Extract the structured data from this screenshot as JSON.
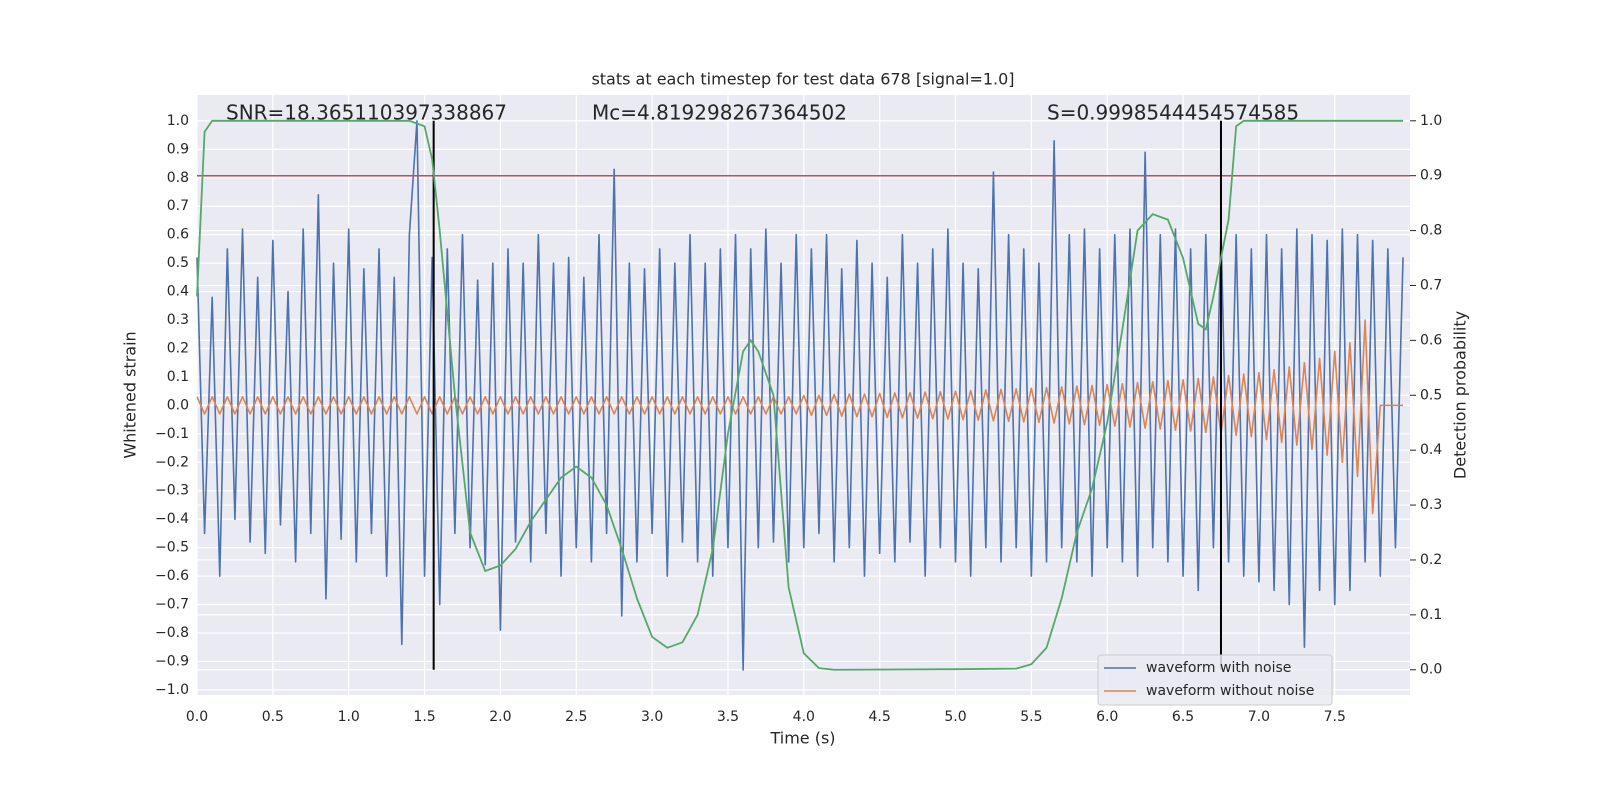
{
  "chart_data": {
    "type": "line",
    "title": "stats at each timestep for test data 678 [signal=1.0]",
    "xlabel": "Time (s)",
    "ylabel": "Whitened strain",
    "y2label": "Detection probability",
    "annotations": [
      "SNR=18.365110397338867",
      "Mc=4.819298267364502",
      "S=0.9998544454574585"
    ],
    "xlim": [
      0,
      7.996
    ],
    "ylim": [
      -1.018,
      1.091
    ],
    "y2lim": [
      -0.046,
      1.047
    ],
    "xticks": [
      {
        "value": 0,
        "label": "0.0"
      },
      0.5,
      {
        "value": 1,
        "label": "1.0"
      },
      1.5,
      {
        "value": 2,
        "label": "2.0"
      },
      2.5,
      {
        "value": 3,
        "label": "3.0"
      },
      3.5,
      {
        "value": 4,
        "label": "4.0"
      },
      4.5,
      {
        "value": 5,
        "label": "5.0"
      },
      5.5,
      {
        "value": 6,
        "label": "6.0"
      },
      6.5,
      {
        "value": 7,
        "label": "7.0"
      },
      7.5
    ],
    "yticks": [
      {
        "value": -1,
        "label": "−1.0"
      },
      {
        "value": -0.9,
        "label": "−0.9"
      },
      {
        "value": -0.8,
        "label": "−0.8"
      },
      {
        "value": -0.7,
        "label": "−0.7"
      },
      {
        "value": -0.6,
        "label": "−0.6"
      },
      {
        "value": -0.5,
        "label": "−0.5"
      },
      {
        "value": -0.4,
        "label": "−0.4"
      },
      {
        "value": -0.3,
        "label": "−0.3"
      },
      {
        "value": -0.2,
        "label": "−0.2"
      },
      {
        "value": -0.1,
        "label": "−0.1"
      },
      {
        "value": 0,
        "label": "0.0"
      },
      0.1,
      0.2,
      0.3,
      0.4,
      0.5,
      0.6,
      0.7,
      0.8,
      0.9,
      {
        "value": 1,
        "label": "1.0"
      }
    ],
    "y2ticks": [
      {
        "value": 0,
        "label": "0.0"
      },
      0.1,
      0.2,
      0.3,
      0.4,
      0.5,
      0.6,
      0.7,
      0.8,
      0.9,
      {
        "value": 1,
        "label": "1.0"
      }
    ],
    "grid": true,
    "legend": "lower right",
    "x": [
      0,
      0.05,
      0.1,
      0.15,
      0.2,
      0.25,
      0.3,
      0.35,
      0.4,
      0.45,
      0.5,
      0.55,
      0.6,
      0.65,
      0.7,
      0.75,
      0.8,
      0.85,
      0.9,
      0.95,
      1,
      1.05,
      1.1,
      1.15,
      1.2,
      1.25,
      1.3,
      1.35,
      1.4,
      1.45,
      1.5,
      1.55,
      1.6,
      1.65,
      1.7,
      1.75,
      1.8,
      1.85,
      1.9,
      1.95,
      2,
      2.05,
      2.1,
      2.15,
      2.2,
      2.25,
      2.3,
      2.35,
      2.4,
      2.45,
      2.5,
      2.55,
      2.6,
      2.65,
      2.7,
      2.75,
      2.8,
      2.85,
      2.9,
      2.95,
      3,
      3.05,
      3.1,
      3.15,
      3.2,
      3.25,
      3.3,
      3.35,
      3.4,
      3.45,
      3.5,
      3.55,
      3.6,
      3.65,
      3.7,
      3.75,
      3.8,
      3.85,
      3.9,
      3.95,
      4,
      4.05,
      4.1,
      4.15,
      4.2,
      4.25,
      4.3,
      4.35,
      4.4,
      4.45,
      4.5,
      4.55,
      4.6,
      4.65,
      4.7,
      4.75,
      4.8,
      4.85,
      4.9,
      4.95,
      5,
      5.05,
      5.1,
      5.15,
      5.2,
      5.25,
      5.3,
      5.35,
      5.4,
      5.45,
      5.5,
      5.55,
      5.6,
      5.65,
      5.7,
      5.75,
      5.8,
      5.85,
      5.9,
      5.95,
      6,
      6.05,
      6.1,
      6.15,
      6.2,
      6.25,
      6.3,
      6.35,
      6.4,
      6.45,
      6.5,
      6.55,
      6.6,
      6.65,
      6.7,
      6.75,
      6.8,
      6.85,
      6.9,
      6.95,
      7,
      7.05,
      7.1,
      7.15,
      7.2,
      7.25,
      7.3,
      7.35,
      7.4,
      7.45,
      7.5,
      7.55,
      7.6,
      7.65,
      7.7,
      7.75,
      7.8,
      7.85,
      7.9,
      7.95
    ],
    "series": [
      {
        "name": "waveform with noise",
        "color": "#4c72b0",
        "values": [
          0.52,
          -0.45,
          0.38,
          -0.6,
          0.55,
          -0.4,
          0.62,
          -0.48,
          0.45,
          -0.52,
          0.58,
          -0.42,
          0.4,
          -0.55,
          0.62,
          -0.45,
          0.74,
          -0.68,
          0.5,
          -0.47,
          0.62,
          -0.55,
          0.48,
          -0.45,
          0.55,
          -0.6,
          0.45,
          -0.84,
          0.6,
          1.0,
          -0.6,
          0.52,
          -0.7,
          0.55,
          -0.45,
          0.6,
          -0.5,
          0.44,
          -0.56,
          0.5,
          -0.79,
          0.55,
          -0.48,
          0.5,
          -0.55,
          0.6,
          -0.45,
          0.5,
          -0.6,
          0.52,
          -0.5,
          0.45,
          -0.55,
          0.6,
          -0.45,
          0.83,
          -0.74,
          0.5,
          -0.55,
          0.48,
          -0.45,
          0.55,
          -0.6,
          0.5,
          -0.48,
          0.6,
          -0.55,
          0.5,
          -0.6,
          0.55,
          -0.5,
          0.6,
          -0.93,
          0.55,
          -0.5,
          0.62,
          -0.48,
          0.5,
          -0.55,
          0.6,
          -0.5,
          0.55,
          -0.45,
          0.6,
          -0.55,
          0.48,
          -0.5,
          0.58,
          -0.6,
          0.5,
          -0.52,
          0.45,
          -0.55,
          0.6,
          -0.48,
          0.5,
          -0.6,
          0.55,
          -0.5,
          0.62,
          -0.55,
          0.5,
          -0.6,
          0.48,
          -0.5,
          0.82,
          -0.55,
          0.6,
          -0.5,
          0.55,
          -0.6,
          0.5,
          -0.55,
          0.93,
          -0.5,
          0.6,
          -0.55,
          0.62,
          -0.6,
          0.55,
          -0.5,
          0.6,
          -0.55,
          0.62,
          -0.6,
          0.89,
          -0.5,
          0.6,
          -0.55,
          0.62,
          -0.6,
          0.55,
          -0.65,
          0.6,
          -0.5,
          0.62,
          -0.55,
          0.6,
          -0.6,
          0.55,
          -0.62,
          0.6,
          -0.65,
          0.55,
          -0.7,
          0.62,
          -0.85,
          0.6,
          -0.65,
          0.58,
          -0.7,
          0.62,
          -0.65,
          0.6,
          -0.55,
          0.58,
          -0.6,
          0.55,
          -0.5,
          0.52
        ]
      },
      {
        "name": "waveform without noise",
        "color": "#dd8452",
        "values": [
          0.03,
          -0.03,
          0.03,
          -0.03,
          0.03,
          -0.03,
          0.03,
          -0.03,
          0.03,
          -0.03,
          0.03,
          -0.03,
          0.03,
          -0.03,
          0.03,
          -0.03,
          0.03,
          -0.03,
          0.03,
          -0.03,
          0.03,
          -0.03,
          0.03,
          -0.03,
          0.03,
          -0.03,
          0.03,
          -0.03,
          0.03,
          -0.03,
          0.03,
          -0.03,
          0.03,
          -0.03,
          0.03,
          -0.03,
          0.03,
          -0.03,
          0.03,
          -0.03,
          0.03,
          -0.03,
          0.03,
          -0.03,
          0.03,
          -0.03,
          0.03,
          -0.03,
          0.03,
          -0.03,
          0.03,
          -0.03,
          0.03,
          -0.03,
          0.03,
          -0.03,
          0.03,
          -0.03,
          0.03,
          -0.03,
          0.03,
          -0.03,
          0.03,
          -0.03,
          0.03,
          -0.03,
          0.03,
          -0.03,
          0.03,
          -0.03,
          0.03,
          -0.03,
          0.03,
          -0.03,
          0.03,
          -0.03,
          0.03,
          -0.03,
          0.03,
          -0.03,
          0.035,
          -0.035,
          0.035,
          -0.035,
          0.038,
          -0.038,
          0.04,
          -0.04,
          0.04,
          -0.04,
          0.042,
          -0.042,
          0.044,
          -0.044,
          0.045,
          -0.045,
          0.047,
          -0.047,
          0.048,
          -0.048,
          0.05,
          -0.05,
          0.052,
          -0.052,
          0.054,
          -0.054,
          0.056,
          -0.056,
          0.058,
          -0.058,
          0.06,
          -0.06,
          0.062,
          -0.062,
          0.065,
          -0.065,
          0.068,
          -0.068,
          0.07,
          -0.07,
          0.073,
          -0.073,
          0.076,
          -0.076,
          0.08,
          -0.08,
          0.083,
          -0.083,
          0.087,
          -0.087,
          0.09,
          -0.09,
          0.095,
          -0.095,
          0.1,
          -0.1,
          0.105,
          -0.105,
          0.11,
          -0.11,
          0.115,
          -0.12,
          0.125,
          -0.13,
          0.135,
          -0.14,
          0.15,
          -0.155,
          0.165,
          -0.175,
          0.19,
          -0.2,
          0.22,
          -0.25,
          0.3,
          -0.38,
          0,
          0,
          0,
          0
        ]
      }
    ],
    "y2_series": {
      "color": "#55a868",
      "x": [
        0,
        0.05,
        0.1,
        1.4,
        1.5,
        1.55,
        1.6,
        1.7,
        1.8,
        1.9,
        2,
        2.1,
        2.2,
        2.3,
        2.4,
        2.5,
        2.6,
        2.7,
        2.8,
        2.9,
        3,
        3.1,
        3.2,
        3.3,
        3.4,
        3.5,
        3.6,
        3.65,
        3.7,
        3.8,
        3.9,
        4,
        4.1,
        4.2,
        5,
        5.4,
        5.5,
        5.6,
        5.7,
        5.8,
        5.9,
        6,
        6.1,
        6.2,
        6.3,
        6.4,
        6.5,
        6.6,
        6.65,
        6.7,
        6.8,
        6.85,
        6.9,
        7.95
      ],
      "values": [
        0.68,
        0.98,
        1,
        1,
        0.99,
        0.93,
        0.8,
        0.5,
        0.25,
        0.18,
        0.19,
        0.22,
        0.27,
        0.31,
        0.35,
        0.37,
        0.35,
        0.3,
        0.22,
        0.13,
        0.06,
        0.04,
        0.05,
        0.1,
        0.22,
        0.43,
        0.58,
        0.6,
        0.58,
        0.5,
        0.15,
        0.03,
        0.003,
        0,
        0.001,
        0.002,
        0.01,
        0.04,
        0.13,
        0.25,
        0.33,
        0.45,
        0.62,
        0.8,
        0.83,
        0.82,
        0.75,
        0.63,
        0.62,
        0.68,
        0.82,
        0.99,
        1,
        1
      ]
    },
    "y2_hline": 0.9,
    "y2_hline_color": "#c44e52",
    "vlines": [
      1.56,
      6.75
    ],
    "vline_color": "#000000"
  }
}
